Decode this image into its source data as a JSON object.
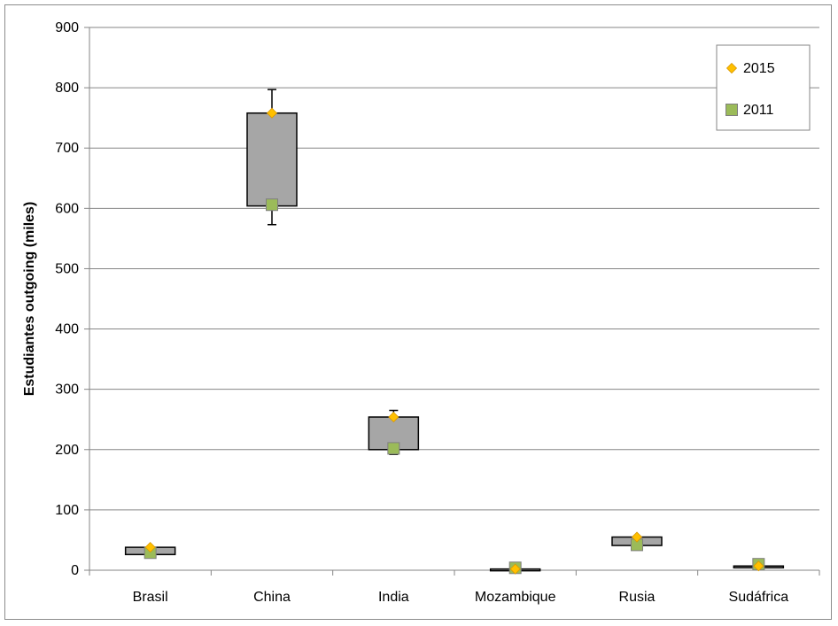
{
  "chart_data": {
    "type": "box",
    "categories": [
      "Brasil",
      "China",
      "India",
      "Mozambique",
      "Rusia",
      "Sudáfrica"
    ],
    "ylabel": "Estudiantes outgoing  (miles)",
    "xlabel": "",
    "ylim": [
      0,
      900
    ],
    "yticks": [
      0,
      100,
      200,
      300,
      400,
      500,
      600,
      700,
      800,
      900
    ],
    "grid": true,
    "legend_position": "top-right",
    "boxes": [
      {
        "low": 26,
        "high": 38,
        "whisker_low": 26,
        "whisker_high": 38
      },
      {
        "low": 604,
        "high": 758,
        "whisker_low": 573,
        "whisker_high": 797
      },
      {
        "low": 200,
        "high": 254,
        "whisker_low": 192,
        "whisker_high": 265
      },
      {
        "low": 1,
        "high": 2,
        "whisker_low": 1,
        "whisker_high": 2
      },
      {
        "low": 41,
        "high": 55,
        "whisker_low": 41,
        "whisker_high": 55
      },
      {
        "low": 5,
        "high": 7,
        "whisker_low": 5,
        "whisker_high": 7
      }
    ],
    "series": [
      {
        "name": "2015",
        "marker": "diamond",
        "color": "#FFC000",
        "values": [
          38,
          758,
          254,
          2,
          55,
          7
        ]
      },
      {
        "name": "2011",
        "marker": "square",
        "color": "#9BBB59",
        "values": [
          29,
          606,
          202,
          4,
          42,
          10
        ]
      }
    ],
    "colors": {
      "box_fill": "#A6A6A6",
      "grid": "#868686"
    }
  }
}
